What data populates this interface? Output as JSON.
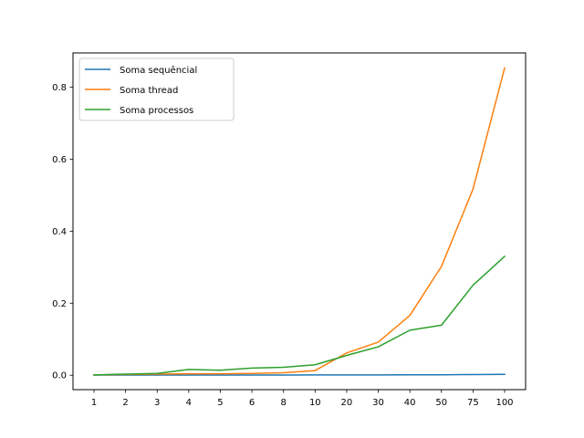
{
  "chart_data": {
    "type": "line",
    "categories": [
      "1",
      "2",
      "3",
      "4",
      "5",
      "6",
      "8",
      "10",
      "20",
      "30",
      "40",
      "50",
      "75",
      "100"
    ],
    "series": [
      {
        "name": "Soma sequêncial",
        "color": "#1f77b4",
        "values": [
          0.0005,
          0.0005,
          0.0006,
          0.0006,
          0.0006,
          0.0007,
          0.0007,
          0.0008,
          0.0008,
          0.0009,
          0.0011,
          0.0013,
          0.0018,
          0.0025
        ]
      },
      {
        "name": "Soma thread",
        "color": "#ff7f0e",
        "values": [
          0.001,
          0.002,
          0.003,
          0.004,
          0.004,
          0.005,
          0.007,
          0.013,
          0.062,
          0.092,
          0.166,
          0.302,
          0.517,
          0.853
        ]
      },
      {
        "name": "Soma processos",
        "color": "#2ca02c",
        "values": [
          0.001,
          0.003,
          0.005,
          0.016,
          0.014,
          0.02,
          0.022,
          0.029,
          0.055,
          0.079,
          0.125,
          0.139,
          0.25,
          0.33
        ]
      }
    ],
    "yticks": [
      "0.0",
      "0.2",
      "0.4",
      "0.6",
      "0.8"
    ],
    "ytick_values": [
      0.0,
      0.2,
      0.4,
      0.6,
      0.8
    ],
    "ylim": [
      -0.04,
      0.895
    ],
    "title": "",
    "xlabel": "",
    "ylabel": "",
    "grid": false,
    "legend_position": "upper-left"
  }
}
